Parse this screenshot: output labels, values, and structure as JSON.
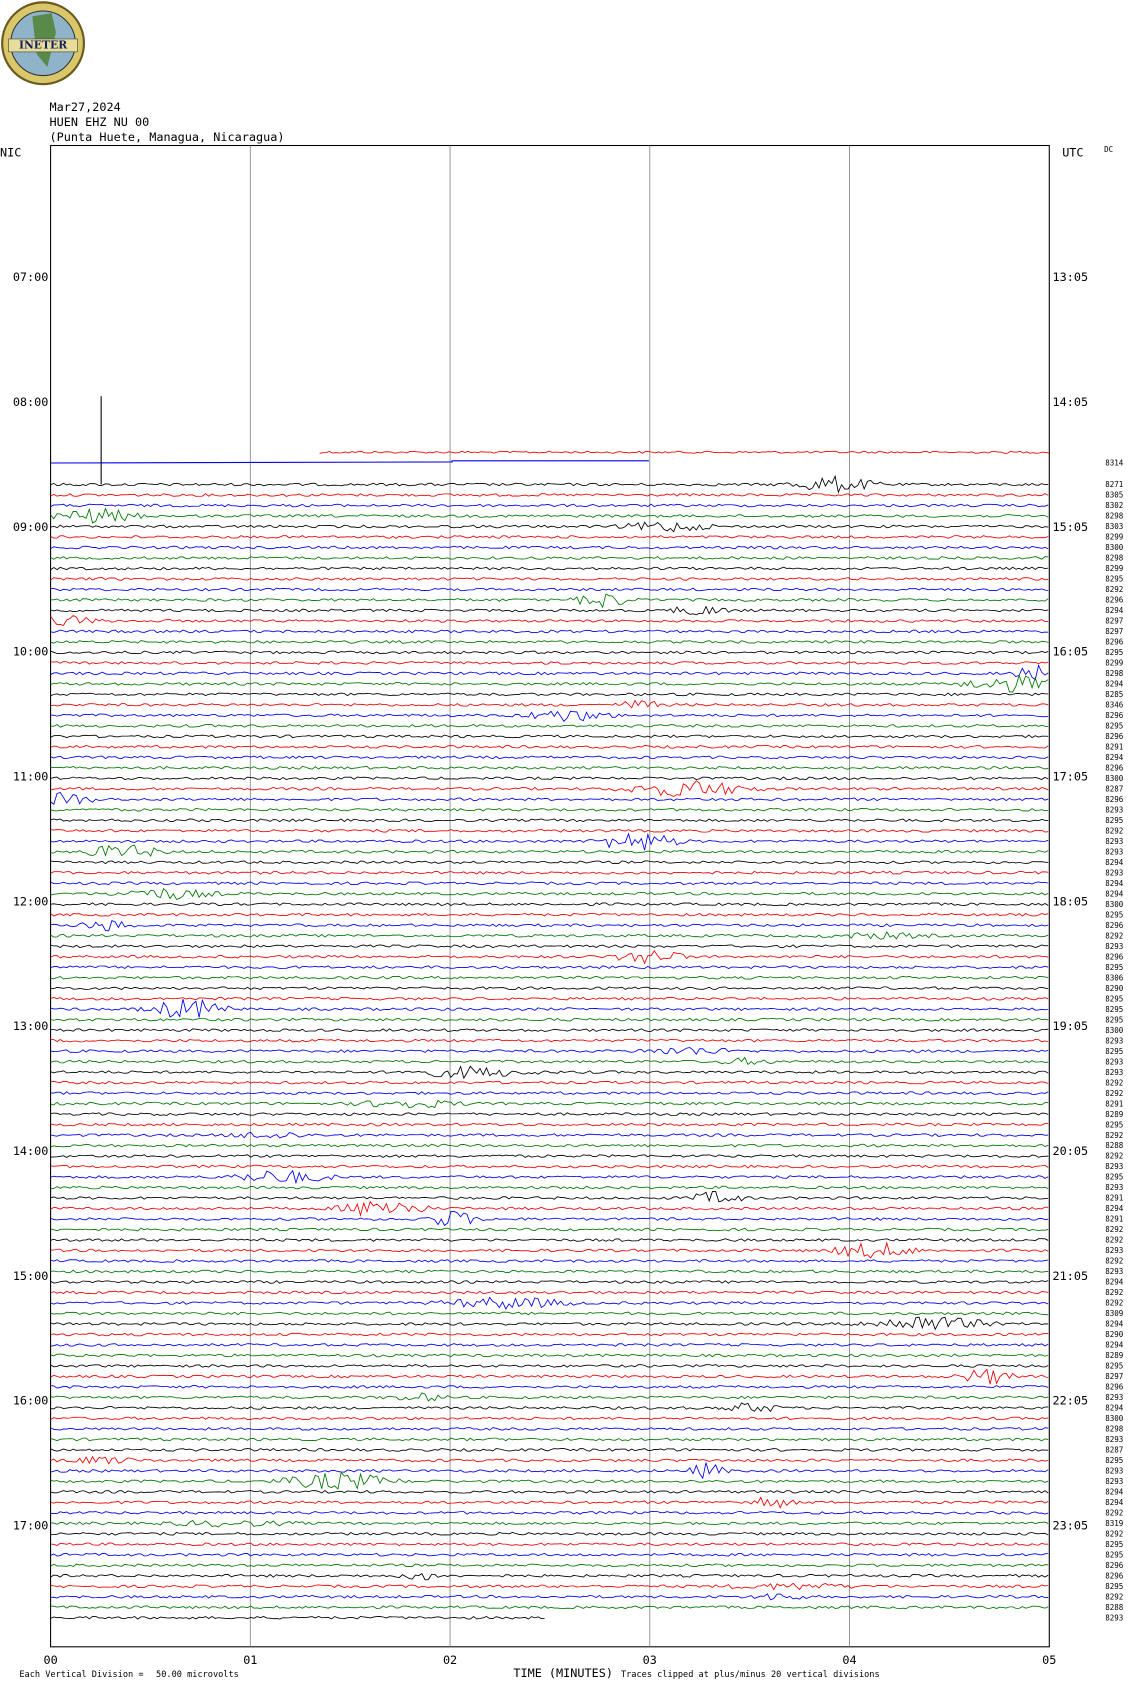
{
  "logo": "INETER",
  "header": {
    "date": "Mar27,2024",
    "station": "HUEN EHZ NU 00",
    "location": "(Punta Huete, Managua, Nicaragua)"
  },
  "left_label": "NIC",
  "right_label": "UTC",
  "dc_label": "DC",
  "left_times": [
    "07:00",
    "08:00",
    "09:00",
    "10:00",
    "11:00",
    "12:00",
    "13:00",
    "14:00",
    "15:00",
    "16:00",
    "17:00"
  ],
  "right_times": [
    "13:05",
    "14:05",
    "15:05",
    "16:05",
    "17:05",
    "18:05",
    "19:05",
    "20:05",
    "21:05",
    "22:05",
    "23:05"
  ],
  "dc_values": [
    "8314",
    "8271",
    "8305",
    "8302",
    "8298",
    "8303",
    "8299",
    "8300",
    "8298",
    "8299",
    "8295",
    "8292",
    "8296",
    "8294",
    "8297",
    "8297",
    "8296",
    "8295",
    "8299",
    "8298",
    "8294",
    "8285",
    "8346",
    "8296",
    "8295",
    "8296",
    "8291",
    "8294",
    "8296",
    "8300",
    "8287",
    "8296",
    "8293",
    "8295",
    "8292",
    "8293",
    "8293",
    "8294",
    "8293",
    "8294",
    "8294",
    "8300",
    "8295",
    "8296",
    "8292",
    "8293",
    "8296",
    "8295",
    "8306",
    "8290",
    "8295",
    "8295",
    "8295",
    "8300",
    "8293",
    "8295",
    "8293",
    "8293",
    "8292",
    "8292",
    "8291",
    "8289",
    "8295",
    "8292",
    "8288",
    "8292",
    "8293",
    "8295",
    "8293",
    "8291",
    "8294",
    "8291",
    "8292",
    "8292",
    "8293",
    "8292",
    "8293",
    "8294",
    "8292",
    "8292",
    "8309",
    "8294",
    "8290",
    "8294",
    "8289",
    "8295",
    "8297",
    "8296",
    "8293",
    "8294",
    "8300",
    "8298",
    "8293",
    "8287",
    "8295",
    "8293",
    "8293",
    "8294",
    "8294",
    "8292",
    "8319",
    "8292",
    "8295",
    "8295",
    "8296",
    "8296",
    "8295",
    "8292",
    "8288",
    "8293"
  ],
  "x_ticks": [
    "00",
    "01",
    "02",
    "03",
    "04",
    "05"
  ],
  "footer": {
    "scale_label": "Each Vertical Division =",
    "scale_value": "50.00 microvolts",
    "x_title": "TIME (MINUTES)",
    "clip_note": "Traces clipped at plus/minus 20 vertical divisions"
  }
}
